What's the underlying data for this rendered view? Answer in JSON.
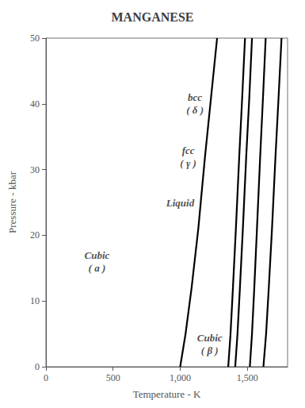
{
  "chart_data": {
    "type": "line",
    "title": "MANGANESE",
    "xlabel": "Temperature - K",
    "ylabel": "Pressure - kbar",
    "xlim": [
      0,
      1800
    ],
    "ylim": [
      0,
      50
    ],
    "xticks": [
      0,
      500,
      1000,
      1500
    ],
    "yticks": [
      0,
      10,
      20,
      30,
      40,
      50
    ],
    "grid": false,
    "color": "#000000",
    "series": [
      {
        "x": [
          1000,
          1040,
          1085,
          1135,
          1185,
          1230,
          1275
        ],
        "values": [
          0,
          5,
          12,
          21,
          32,
          41,
          50
        ]
      },
      {
        "x": [
          1358,
          1375,
          1393,
          1415,
          1440,
          1462,
          1483
        ],
        "values": [
          0,
          5,
          12,
          21,
          32,
          41,
          50
        ]
      },
      {
        "x": [
          1410,
          1427,
          1445,
          1467,
          1492,
          1515,
          1535
        ],
        "values": [
          0,
          5,
          12,
          21,
          32,
          41,
          50
        ]
      },
      {
        "x": [
          1519,
          1535,
          1552,
          1572,
          1596,
          1617,
          1637
        ],
        "values": [
          0,
          5,
          12,
          21,
          32,
          41,
          50
        ]
      },
      {
        "x": [
          1620,
          1640,
          1660,
          1684,
          1710,
          1733,
          1755
        ],
        "values": [
          0,
          5,
          12,
          21,
          32,
          41,
          50
        ]
      }
    ],
    "annotations": [
      {
        "text": "Cubic\n( a )",
        "x": 380,
        "y": 16
      },
      {
        "text": "Cubic\n( β )",
        "x": 1220,
        "y": 3.5
      },
      {
        "text": "fcc\n( γ )",
        "x": 1060,
        "y": 32
      },
      {
        "text": "bcc\n( δ )",
        "x": 1110,
        "y": 40
      },
      {
        "text": "Liquid",
        "x": 1000,
        "y": 25
      }
    ]
  }
}
